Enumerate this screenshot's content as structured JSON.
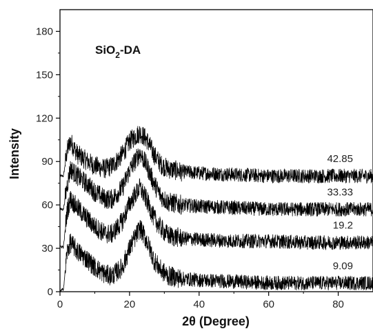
{
  "chart_data": {
    "type": "line",
    "title": "",
    "annotation": {
      "main": "SiO",
      "sub": "2",
      "suffix": "-DA"
    },
    "xlabel": "2θ (Degree)",
    "ylabel": "Intensity",
    "xlim": [
      0,
      90
    ],
    "ylim": [
      0,
      195
    ],
    "xticks": [
      0,
      20,
      40,
      60,
      80
    ],
    "yticks": [
      0,
      30,
      60,
      90,
      120,
      150,
      180
    ],
    "grid": false,
    "line_color": "#000000",
    "series": [
      {
        "name": "42.85",
        "x": [
          0,
          1,
          2,
          3,
          5,
          8,
          10,
          13,
          15,
          18,
          20,
          23,
          25,
          27,
          29,
          31,
          35,
          40,
          50,
          60,
          70,
          80,
          90
        ],
        "values": [
          80,
          80,
          97,
          104,
          95,
          90,
          87,
          85,
          87,
          95,
          104,
          110,
          105,
          95,
          88,
          85,
          83,
          82,
          81,
          80,
          80,
          80,
          80
        ]
      },
      {
        "name": "33.33",
        "x": [
          0,
          1,
          2,
          3,
          5,
          8,
          10,
          13,
          15,
          18,
          20,
          23,
          25,
          27,
          29,
          31,
          35,
          40,
          50,
          60,
          70,
          80,
          90
        ],
        "values": [
          57,
          57,
          73,
          85,
          80,
          74,
          69,
          64,
          64,
          72,
          84,
          96,
          87,
          75,
          66,
          62,
          60,
          59,
          58,
          57,
          57,
          57,
          57
        ]
      },
      {
        "name": "19.2",
        "x": [
          0,
          1,
          2,
          3,
          5,
          8,
          10,
          13,
          15,
          18,
          20,
          23,
          25,
          27,
          29,
          31,
          35,
          40,
          50,
          60,
          70,
          80,
          90
        ],
        "values": [
          31,
          31,
          55,
          64,
          58,
          50,
          45,
          40,
          40,
          49,
          61,
          72,
          63,
          51,
          44,
          39,
          37,
          36,
          35,
          35,
          34,
          34,
          34
        ]
      },
      {
        "name": "9.09",
        "x": [
          0,
          1,
          2,
          3,
          5,
          8,
          10,
          13,
          15,
          18,
          20,
          23,
          25,
          27,
          29,
          31,
          35,
          40,
          50,
          60,
          70,
          80,
          90
        ],
        "values": [
          0,
          2,
          27,
          34,
          28,
          22,
          17,
          12,
          11,
          17,
          30,
          44,
          35,
          22,
          15,
          11,
          9,
          8,
          7,
          6,
          6,
          6,
          6
        ]
      }
    ]
  }
}
